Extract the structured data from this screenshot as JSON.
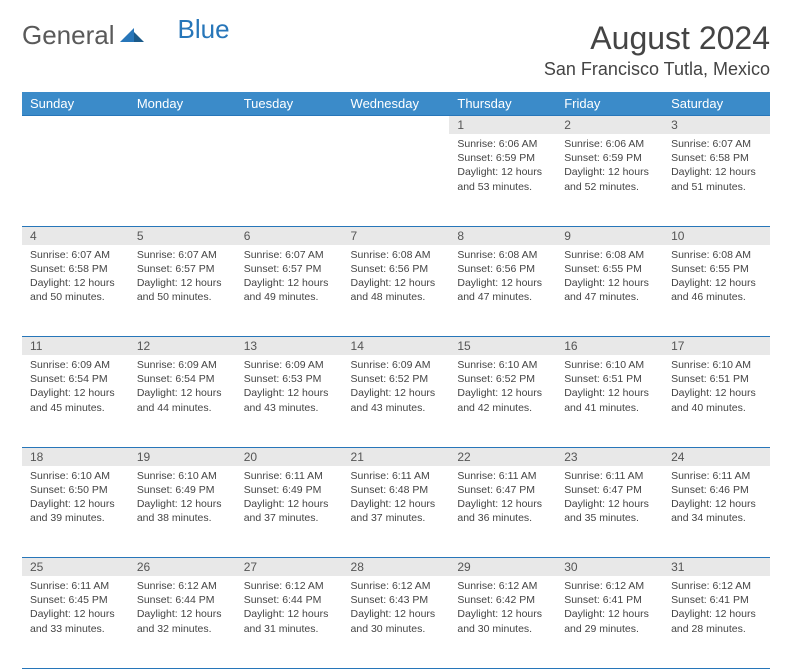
{
  "logo": {
    "part1": "General",
    "part2": "Blue"
  },
  "title": "August 2024",
  "location": "San Francisco Tutla, Mexico",
  "colors": {
    "header_bg": "#3b8bc9",
    "header_text": "#ffffff",
    "accent": "#2776b9",
    "daynum_bg": "#e8e8e8",
    "text": "#444444"
  },
  "day_headers": [
    "Sunday",
    "Monday",
    "Tuesday",
    "Wednesday",
    "Thursday",
    "Friday",
    "Saturday"
  ],
  "weeks": [
    [
      null,
      null,
      null,
      null,
      {
        "n": "1",
        "sr": "6:06 AM",
        "ss": "6:59 PM",
        "dl": "12 hours and 53 minutes."
      },
      {
        "n": "2",
        "sr": "6:06 AM",
        "ss": "6:59 PM",
        "dl": "12 hours and 52 minutes."
      },
      {
        "n": "3",
        "sr": "6:07 AM",
        "ss": "6:58 PM",
        "dl": "12 hours and 51 minutes."
      }
    ],
    [
      {
        "n": "4",
        "sr": "6:07 AM",
        "ss": "6:58 PM",
        "dl": "12 hours and 50 minutes."
      },
      {
        "n": "5",
        "sr": "6:07 AM",
        "ss": "6:57 PM",
        "dl": "12 hours and 50 minutes."
      },
      {
        "n": "6",
        "sr": "6:07 AM",
        "ss": "6:57 PM",
        "dl": "12 hours and 49 minutes."
      },
      {
        "n": "7",
        "sr": "6:08 AM",
        "ss": "6:56 PM",
        "dl": "12 hours and 48 minutes."
      },
      {
        "n": "8",
        "sr": "6:08 AM",
        "ss": "6:56 PM",
        "dl": "12 hours and 47 minutes."
      },
      {
        "n": "9",
        "sr": "6:08 AM",
        "ss": "6:55 PM",
        "dl": "12 hours and 47 minutes."
      },
      {
        "n": "10",
        "sr": "6:08 AM",
        "ss": "6:55 PM",
        "dl": "12 hours and 46 minutes."
      }
    ],
    [
      {
        "n": "11",
        "sr": "6:09 AM",
        "ss": "6:54 PM",
        "dl": "12 hours and 45 minutes."
      },
      {
        "n": "12",
        "sr": "6:09 AM",
        "ss": "6:54 PM",
        "dl": "12 hours and 44 minutes."
      },
      {
        "n": "13",
        "sr": "6:09 AM",
        "ss": "6:53 PM",
        "dl": "12 hours and 43 minutes."
      },
      {
        "n": "14",
        "sr": "6:09 AM",
        "ss": "6:52 PM",
        "dl": "12 hours and 43 minutes."
      },
      {
        "n": "15",
        "sr": "6:10 AM",
        "ss": "6:52 PM",
        "dl": "12 hours and 42 minutes."
      },
      {
        "n": "16",
        "sr": "6:10 AM",
        "ss": "6:51 PM",
        "dl": "12 hours and 41 minutes."
      },
      {
        "n": "17",
        "sr": "6:10 AM",
        "ss": "6:51 PM",
        "dl": "12 hours and 40 minutes."
      }
    ],
    [
      {
        "n": "18",
        "sr": "6:10 AM",
        "ss": "6:50 PM",
        "dl": "12 hours and 39 minutes."
      },
      {
        "n": "19",
        "sr": "6:10 AM",
        "ss": "6:49 PM",
        "dl": "12 hours and 38 minutes."
      },
      {
        "n": "20",
        "sr": "6:11 AM",
        "ss": "6:49 PM",
        "dl": "12 hours and 37 minutes."
      },
      {
        "n": "21",
        "sr": "6:11 AM",
        "ss": "6:48 PM",
        "dl": "12 hours and 37 minutes."
      },
      {
        "n": "22",
        "sr": "6:11 AM",
        "ss": "6:47 PM",
        "dl": "12 hours and 36 minutes."
      },
      {
        "n": "23",
        "sr": "6:11 AM",
        "ss": "6:47 PM",
        "dl": "12 hours and 35 minutes."
      },
      {
        "n": "24",
        "sr": "6:11 AM",
        "ss": "6:46 PM",
        "dl": "12 hours and 34 minutes."
      }
    ],
    [
      {
        "n": "25",
        "sr": "6:11 AM",
        "ss": "6:45 PM",
        "dl": "12 hours and 33 minutes."
      },
      {
        "n": "26",
        "sr": "6:12 AM",
        "ss": "6:44 PM",
        "dl": "12 hours and 32 minutes."
      },
      {
        "n": "27",
        "sr": "6:12 AM",
        "ss": "6:44 PM",
        "dl": "12 hours and 31 minutes."
      },
      {
        "n": "28",
        "sr": "6:12 AM",
        "ss": "6:43 PM",
        "dl": "12 hours and 30 minutes."
      },
      {
        "n": "29",
        "sr": "6:12 AM",
        "ss": "6:42 PM",
        "dl": "12 hours and 30 minutes."
      },
      {
        "n": "30",
        "sr": "6:12 AM",
        "ss": "6:41 PM",
        "dl": "12 hours and 29 minutes."
      },
      {
        "n": "31",
        "sr": "6:12 AM",
        "ss": "6:41 PM",
        "dl": "12 hours and 28 minutes."
      }
    ]
  ],
  "labels": {
    "sunrise": "Sunrise:",
    "sunset": "Sunset:",
    "daylight": "Daylight:"
  }
}
